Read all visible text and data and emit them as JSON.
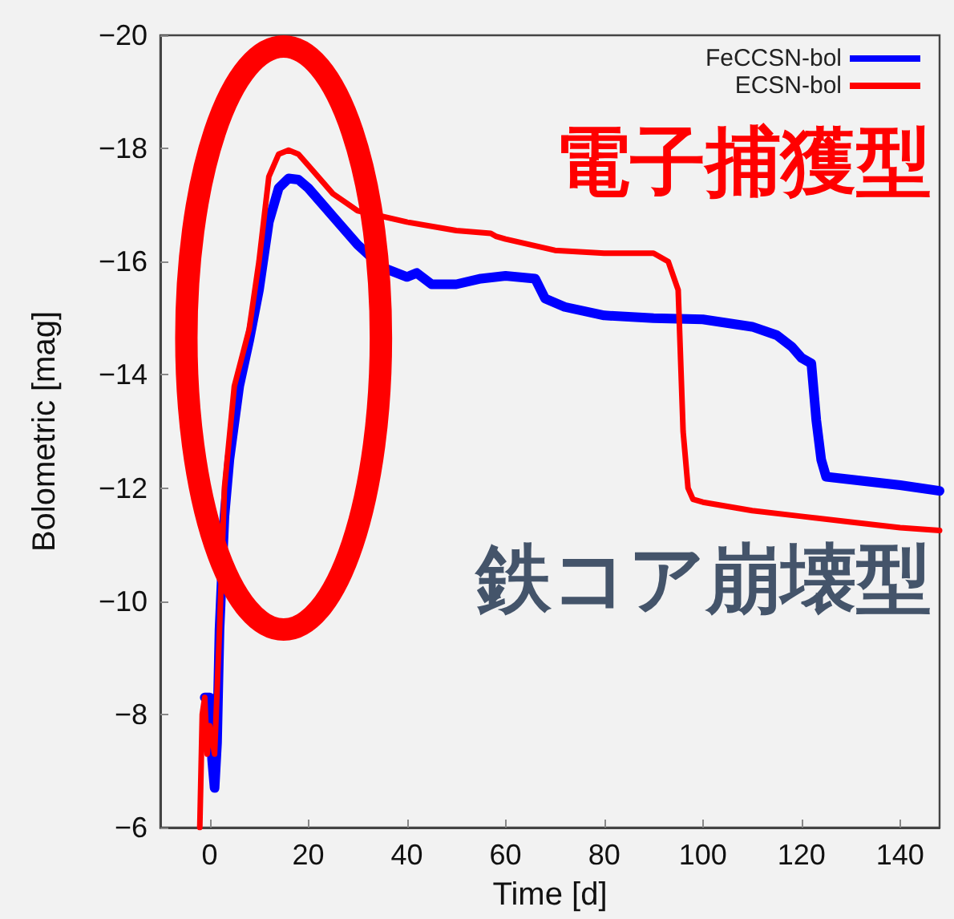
{
  "chart_data": {
    "type": "line",
    "xlabel": "Time [d]",
    "ylabel": "Bolometric [mag]",
    "xlim": [
      -10,
      148
    ],
    "xticks": [
      0,
      20,
      40,
      60,
      80,
      100,
      120,
      140
    ],
    "ylim": [
      -6,
      -20
    ],
    "yticks": [
      -20,
      -18,
      -16,
      -14,
      -12,
      -10,
      -8,
      -6
    ],
    "legend": "top right",
    "line_style": "solid",
    "annotations": [
      "電子捕獲型",
      "鉄コア崩壊型"
    ],
    "series": [
      {
        "name": "FeCCSN-bol",
        "color": "#0000ff",
        "x": [
          -1,
          0,
          0.5,
          1,
          1.5,
          2,
          3,
          4,
          6,
          8,
          10,
          12,
          14,
          16,
          18,
          20,
          25,
          30,
          35,
          40,
          42,
          45,
          50,
          55,
          60,
          66,
          68,
          72,
          80,
          90,
          100,
          110,
          115,
          118,
          120,
          122,
          123,
          124,
          125,
          130,
          140,
          148
        ],
        "values": [
          -8.3,
          -8.3,
          -7.2,
          -6.7,
          -7.5,
          -9.5,
          -11.5,
          -12.5,
          -13.8,
          -14.6,
          -15.5,
          -16.7,
          -17.3,
          -17.47,
          -17.45,
          -17.3,
          -16.8,
          -16.3,
          -15.9,
          -15.73,
          -15.8,
          -15.6,
          -15.6,
          -15.7,
          -15.75,
          -15.7,
          -15.35,
          -15.2,
          -15.05,
          -15.0,
          -14.98,
          -14.85,
          -14.7,
          -14.5,
          -14.3,
          -14.2,
          -13.2,
          -12.5,
          -12.2,
          -12.15,
          -12.05,
          -11.95
        ]
      },
      {
        "name": "ECSN-bol",
        "color": "#ff0000",
        "x": [
          -2,
          -1.5,
          -1,
          -0.5,
          0,
          1,
          2,
          3,
          5,
          8,
          10,
          12,
          14,
          16,
          18,
          20,
          25,
          30,
          40,
          50,
          57,
          58,
          60,
          70,
          80,
          90,
          93,
          95,
          96,
          97,
          98,
          100,
          110,
          120,
          130,
          140,
          148
        ],
        "values": [
          -6,
          -8,
          -8.3,
          -7.3,
          -7.8,
          -7.3,
          -9.5,
          -12,
          -13.8,
          -14.8,
          -16.0,
          -17.5,
          -17.9,
          -17.97,
          -17.9,
          -17.7,
          -17.2,
          -16.9,
          -16.7,
          -16.55,
          -16.5,
          -16.45,
          -16.4,
          -16.2,
          -16.15,
          -16.15,
          -16.0,
          -15.5,
          -13.0,
          -12.0,
          -11.8,
          -11.75,
          -11.6,
          -11.5,
          -11.4,
          -11.3,
          -11.25
        ]
      }
    ]
  }
}
